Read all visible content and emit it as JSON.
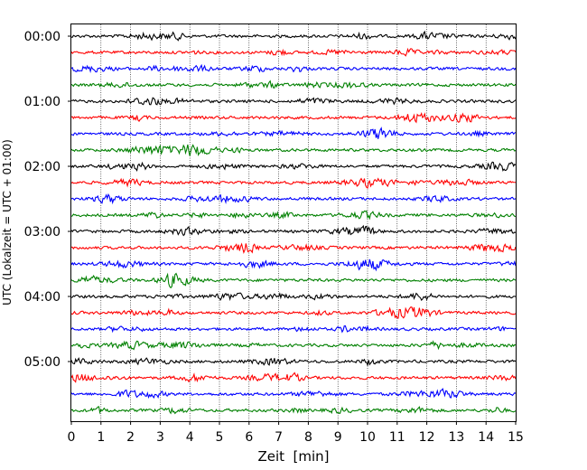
{
  "chart_data": {
    "type": "line",
    "title": "",
    "xlabel": "Zeit  [min]",
    "ylabel": "UTC (Lokalzeit = UTC + 01:00)",
    "xlim": [
      0,
      15
    ],
    "x_ticks": [
      "0",
      "1",
      "2",
      "3",
      "4",
      "5",
      "6",
      "7",
      "8",
      "9",
      "10",
      "11",
      "12",
      "13",
      "14",
      "15"
    ],
    "y_tick_labels": [
      "00:00",
      "01:00",
      "02:00",
      "03:00",
      "04:00",
      "05:00"
    ],
    "grid": "vertical dotted",
    "trace_interval_minutes": 15,
    "trace_count": 24,
    "trace_colors": [
      "#000000",
      "#ff0000",
      "#0000ff",
      "#008000"
    ],
    "traces": [
      {
        "start": "00:00",
        "color": "#000000"
      },
      {
        "start": "00:15",
        "color": "#ff0000"
      },
      {
        "start": "00:30",
        "color": "#0000ff"
      },
      {
        "start": "00:45",
        "color": "#008000"
      },
      {
        "start": "01:00",
        "color": "#000000"
      },
      {
        "start": "01:15",
        "color": "#ff0000"
      },
      {
        "start": "01:30",
        "color": "#0000ff"
      },
      {
        "start": "01:45",
        "color": "#008000"
      },
      {
        "start": "02:00",
        "color": "#000000"
      },
      {
        "start": "02:15",
        "color": "#ff0000"
      },
      {
        "start": "02:30",
        "color": "#0000ff"
      },
      {
        "start": "02:45",
        "color": "#008000"
      },
      {
        "start": "03:00",
        "color": "#000000"
      },
      {
        "start": "03:15",
        "color": "#ff0000"
      },
      {
        "start": "03:30",
        "color": "#0000ff"
      },
      {
        "start": "03:45",
        "color": "#008000"
      },
      {
        "start": "04:00",
        "color": "#000000"
      },
      {
        "start": "04:15",
        "color": "#ff0000"
      },
      {
        "start": "04:30",
        "color": "#0000ff"
      },
      {
        "start": "04:45",
        "color": "#008000"
      },
      {
        "start": "05:00",
        "color": "#000000"
      },
      {
        "start": "05:15",
        "color": "#ff0000"
      },
      {
        "start": "05:30",
        "color": "#0000ff"
      },
      {
        "start": "05:45",
        "color": "#008000"
      }
    ]
  }
}
